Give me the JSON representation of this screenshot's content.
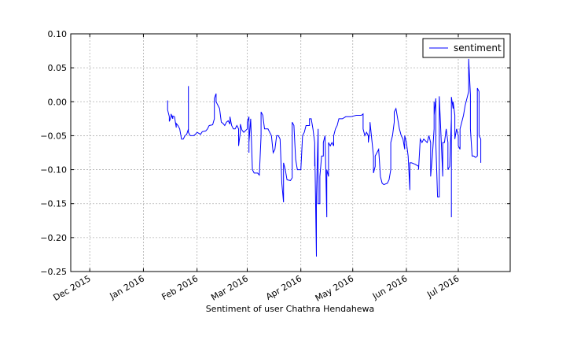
{
  "chart_data": {
    "type": "line",
    "title": "",
    "xlabel": "Sentiment of user Chathra Hendahewa",
    "ylabel": "",
    "xlim": [
      "2015-11-20",
      "2016-07-31"
    ],
    "ylim": [
      -0.25,
      0.1
    ],
    "grid": true,
    "legend": {
      "placement": "top-right"
    },
    "y_ticks": [
      {
        "value": 0.1,
        "label": "0.10"
      },
      {
        "value": 0.05,
        "label": "0.05"
      },
      {
        "value": 0.0,
        "label": "0.00"
      },
      {
        "value": -0.05,
        "label": "−0.05"
      },
      {
        "value": -0.1,
        "label": "−0.10"
      },
      {
        "value": -0.15,
        "label": "−0.15"
      },
      {
        "value": -0.2,
        "label": "−0.20"
      },
      {
        "value": -0.25,
        "label": "−0.25"
      }
    ],
    "x_ticks": [
      {
        "date": "2015-12-01",
        "label": "Dec 2015"
      },
      {
        "date": "2016-01-01",
        "label": "Jan 2016"
      },
      {
        "date": "2016-02-01",
        "label": "Feb 2016"
      },
      {
        "date": "2016-03-01",
        "label": "Mar 2016"
      },
      {
        "date": "2016-04-01",
        "label": "Apr 2016"
      },
      {
        "date": "2016-05-01",
        "label": "May 2016"
      },
      {
        "date": "2016-06-01",
        "label": "Jun 2016"
      },
      {
        "date": "2016-07-01",
        "label": "Jul 2016"
      }
    ],
    "series": [
      {
        "name": "sentiment",
        "color": "#0000ff",
        "points": [
          [
            "2016-01-15",
            0.002
          ],
          [
            "2016-01-15",
            -0.012
          ],
          [
            "2016-01-16",
            -0.022
          ],
          [
            "2016-01-16",
            -0.029
          ],
          [
            "2016-01-17",
            -0.022
          ],
          [
            "2016-01-17",
            -0.018
          ],
          [
            "2016-01-18",
            -0.025
          ],
          [
            "2016-01-18",
            -0.021
          ],
          [
            "2016-01-19",
            -0.022
          ],
          [
            "2016-01-20",
            -0.038
          ],
          [
            "2016-01-20",
            -0.032
          ],
          [
            "2016-01-21",
            -0.035
          ],
          [
            "2016-01-22",
            -0.04
          ],
          [
            "2016-01-23",
            -0.055
          ],
          [
            "2016-01-24",
            -0.055
          ],
          [
            "2016-01-25",
            -0.05
          ],
          [
            "2016-01-26",
            -0.048
          ],
          [
            "2016-01-27",
            -0.04
          ],
          [
            "2016-01-27",
            0.023
          ],
          [
            "2016-01-27",
            -0.045
          ],
          [
            "2016-01-28",
            -0.05
          ],
          [
            "2016-01-30",
            -0.05
          ],
          [
            "2016-01-31",
            -0.048
          ],
          [
            "2016-02-01",
            -0.045
          ],
          [
            "2016-02-03",
            -0.048
          ],
          [
            "2016-02-04",
            -0.044
          ],
          [
            "2016-02-06",
            -0.043
          ],
          [
            "2016-02-07",
            -0.04
          ],
          [
            "2016-02-08",
            -0.035
          ],
          [
            "2016-02-10",
            -0.034
          ],
          [
            "2016-02-11",
            -0.025
          ],
          [
            "2016-02-11",
            0.005
          ],
          [
            "2016-02-12",
            0.012
          ],
          [
            "2016-02-12",
            0.0
          ],
          [
            "2016-02-13",
            -0.005
          ],
          [
            "2016-02-14",
            -0.01
          ],
          [
            "2016-02-15",
            -0.03
          ],
          [
            "2016-02-16",
            -0.032
          ],
          [
            "2016-02-17",
            -0.035
          ],
          [
            "2016-02-18",
            -0.03
          ],
          [
            "2016-02-19",
            -0.028
          ],
          [
            "2016-02-20",
            -0.033
          ],
          [
            "2016-02-20",
            -0.022
          ],
          [
            "2016-02-21",
            -0.035
          ],
          [
            "2016-02-22",
            -0.04
          ],
          [
            "2016-02-23",
            -0.04
          ],
          [
            "2016-02-24",
            -0.035
          ],
          [
            "2016-02-25",
            -0.04
          ],
          [
            "2016-02-25",
            -0.065
          ],
          [
            "2016-02-26",
            -0.045
          ],
          [
            "2016-02-26",
            -0.033
          ],
          [
            "2016-02-27",
            -0.042
          ],
          [
            "2016-02-28",
            -0.045
          ],
          [
            "2016-03-01",
            -0.04
          ],
          [
            "2016-03-01",
            -0.03
          ],
          [
            "2016-03-02",
            -0.022
          ],
          [
            "2016-03-02",
            -0.075
          ],
          [
            "2016-03-02",
            -0.06
          ],
          [
            "2016-03-03",
            -0.025
          ],
          [
            "2016-03-04",
            -0.1
          ],
          [
            "2016-03-05",
            -0.105
          ],
          [
            "2016-03-07",
            -0.105
          ],
          [
            "2016-03-08",
            -0.108
          ],
          [
            "2016-03-09",
            -0.05
          ],
          [
            "2016-03-09",
            -0.015
          ],
          [
            "2016-03-10",
            -0.02
          ],
          [
            "2016-03-11",
            -0.04
          ],
          [
            "2016-03-13",
            -0.04
          ],
          [
            "2016-03-14",
            -0.045
          ],
          [
            "2016-03-15",
            -0.05
          ],
          [
            "2016-03-16",
            -0.075
          ],
          [
            "2016-03-17",
            -0.07
          ],
          [
            "2016-03-18",
            -0.05
          ],
          [
            "2016-03-19",
            -0.05
          ],
          [
            "2016-03-20",
            -0.055
          ],
          [
            "2016-03-21",
            -0.12
          ],
          [
            "2016-03-22",
            -0.148
          ],
          [
            "2016-03-22",
            -0.09
          ],
          [
            "2016-03-23",
            -0.1
          ],
          [
            "2016-03-24",
            -0.115
          ],
          [
            "2016-03-26",
            -0.116
          ],
          [
            "2016-03-27",
            -0.112
          ],
          [
            "2016-03-27",
            -0.03
          ],
          [
            "2016-03-28",
            -0.035
          ],
          [
            "2016-03-29",
            -0.085
          ],
          [
            "2016-03-30",
            -0.1
          ],
          [
            "2016-04-01",
            -0.1
          ],
          [
            "2016-04-02",
            -0.05
          ],
          [
            "2016-04-03",
            -0.045
          ],
          [
            "2016-04-04",
            -0.035
          ],
          [
            "2016-04-06",
            -0.035
          ],
          [
            "2016-04-06",
            -0.025
          ],
          [
            "2016-04-07",
            -0.025
          ],
          [
            "2016-04-08",
            -0.04
          ],
          [
            "2016-04-09",
            -0.06
          ],
          [
            "2016-04-09",
            -0.095
          ],
          [
            "2016-04-09",
            -0.06
          ],
          [
            "2016-04-10",
            -0.228
          ],
          [
            "2016-04-10",
            -0.14
          ],
          [
            "2016-04-11",
            -0.04
          ],
          [
            "2016-04-11",
            -0.15
          ],
          [
            "2016-04-12",
            -0.15
          ],
          [
            "2016-04-12",
            -0.11
          ],
          [
            "2016-04-13",
            -0.08
          ],
          [
            "2016-04-14",
            -0.08
          ],
          [
            "2016-04-14",
            -0.06
          ],
          [
            "2016-04-15",
            -0.05
          ],
          [
            "2016-04-16",
            -0.17
          ],
          [
            "2016-04-16",
            -0.1
          ],
          [
            "2016-04-17",
            -0.11
          ],
          [
            "2016-04-17",
            -0.06
          ],
          [
            "2016-04-18",
            -0.065
          ],
          [
            "2016-04-19",
            -0.06
          ],
          [
            "2016-04-20",
            -0.065
          ],
          [
            "2016-04-20",
            -0.05
          ],
          [
            "2016-04-21",
            -0.04
          ],
          [
            "2016-04-22",
            -0.035
          ],
          [
            "2016-04-23",
            -0.025
          ],
          [
            "2016-04-25",
            -0.025
          ],
          [
            "2016-04-27",
            -0.022
          ],
          [
            "2016-04-30",
            -0.022
          ],
          [
            "2016-05-03",
            -0.02
          ],
          [
            "2016-05-06",
            -0.02
          ],
          [
            "2016-05-07",
            -0.018
          ],
          [
            "2016-05-07",
            -0.04
          ],
          [
            "2016-05-08",
            -0.05
          ],
          [
            "2016-05-09",
            -0.045
          ],
          [
            "2016-05-10",
            -0.05
          ],
          [
            "2016-05-10",
            -0.06
          ],
          [
            "2016-05-11",
            -0.04
          ],
          [
            "2016-05-11",
            -0.03
          ],
          [
            "2016-05-12",
            -0.055
          ],
          [
            "2016-05-13",
            -0.08
          ],
          [
            "2016-05-13",
            -0.105
          ],
          [
            "2016-05-14",
            -0.095
          ],
          [
            "2016-05-14",
            -0.08
          ],
          [
            "2016-05-15",
            -0.075
          ],
          [
            "2016-05-16",
            -0.07
          ],
          [
            "2016-05-17",
            -0.11
          ],
          [
            "2016-05-18",
            -0.12
          ],
          [
            "2016-05-19",
            -0.122
          ],
          [
            "2016-05-21",
            -0.12
          ],
          [
            "2016-05-22",
            -0.115
          ],
          [
            "2016-05-23",
            -0.1
          ],
          [
            "2016-05-23",
            -0.06
          ],
          [
            "2016-05-24",
            -0.05
          ],
          [
            "2016-05-25",
            -0.03
          ],
          [
            "2016-05-25",
            -0.015
          ],
          [
            "2016-05-26",
            -0.01
          ],
          [
            "2016-05-27",
            -0.025
          ],
          [
            "2016-05-28",
            -0.04
          ],
          [
            "2016-05-29",
            -0.05
          ],
          [
            "2016-05-30",
            -0.055
          ],
          [
            "2016-05-31",
            -0.07
          ],
          [
            "2016-05-31",
            -0.05
          ],
          [
            "2016-06-01",
            -0.06
          ],
          [
            "2016-06-02",
            -0.08
          ],
          [
            "2016-06-03",
            -0.13
          ],
          [
            "2016-06-03",
            -0.09
          ],
          [
            "2016-06-04",
            -0.09
          ],
          [
            "2016-06-06",
            -0.092
          ],
          [
            "2016-06-08",
            -0.095
          ],
          [
            "2016-06-08",
            -0.1
          ],
          [
            "2016-06-09",
            -0.055
          ],
          [
            "2016-06-10",
            -0.06
          ],
          [
            "2016-06-11",
            -0.055
          ],
          [
            "2016-06-13",
            -0.06
          ],
          [
            "2016-06-14",
            -0.05
          ],
          [
            "2016-06-15",
            -0.06
          ],
          [
            "2016-06-15",
            -0.11
          ],
          [
            "2016-06-16",
            -0.08
          ],
          [
            "2016-06-17",
            -0.04
          ],
          [
            "2016-06-17",
            0.0
          ],
          [
            "2016-06-17",
            -0.02
          ],
          [
            "2016-06-18",
            0.005
          ],
          [
            "2016-06-18",
            -0.06
          ],
          [
            "2016-06-19",
            -0.14
          ],
          [
            "2016-06-20",
            -0.14
          ],
          [
            "2016-06-20",
            0.008
          ],
          [
            "2016-06-21",
            -0.05
          ],
          [
            "2016-06-22",
            -0.11
          ],
          [
            "2016-06-22",
            -0.06
          ],
          [
            "2016-06-23",
            -0.06
          ],
          [
            "2016-06-24",
            -0.04
          ],
          [
            "2016-06-25",
            -0.06
          ],
          [
            "2016-06-25",
            -0.1
          ],
          [
            "2016-06-26",
            -0.095
          ],
          [
            "2016-06-27",
            -0.025
          ],
          [
            "2016-06-27",
            -0.17
          ],
          [
            "2016-06-27",
            0.007
          ],
          [
            "2016-06-28",
            -0.01
          ],
          [
            "2016-06-28",
            0.0
          ],
          [
            "2016-06-29",
            -0.02
          ],
          [
            "2016-06-29",
            -0.055
          ],
          [
            "2016-06-30",
            -0.04
          ],
          [
            "2016-07-01",
            -0.05
          ],
          [
            "2016-07-01",
            -0.065
          ],
          [
            "2016-07-02",
            -0.07
          ],
          [
            "2016-07-02",
            -0.04
          ],
          [
            "2016-07-03",
            -0.03
          ],
          [
            "2016-07-04",
            -0.02
          ],
          [
            "2016-07-05",
            -0.005
          ],
          [
            "2016-07-06",
            0.005
          ],
          [
            "2016-07-07",
            0.015
          ],
          [
            "2016-07-07",
            0.063
          ],
          [
            "2016-07-08",
            0.01
          ],
          [
            "2016-07-08",
            -0.04
          ],
          [
            "2016-07-09",
            -0.08
          ],
          [
            "2016-07-10",
            -0.08
          ],
          [
            "2016-07-11",
            -0.082
          ],
          [
            "2016-07-12",
            -0.08
          ],
          [
            "2016-07-12",
            0.02
          ],
          [
            "2016-07-13",
            0.015
          ],
          [
            "2016-07-13",
            -0.05
          ],
          [
            "2016-07-14",
            -0.055
          ],
          [
            "2016-07-14",
            -0.09
          ]
        ]
      }
    ]
  }
}
